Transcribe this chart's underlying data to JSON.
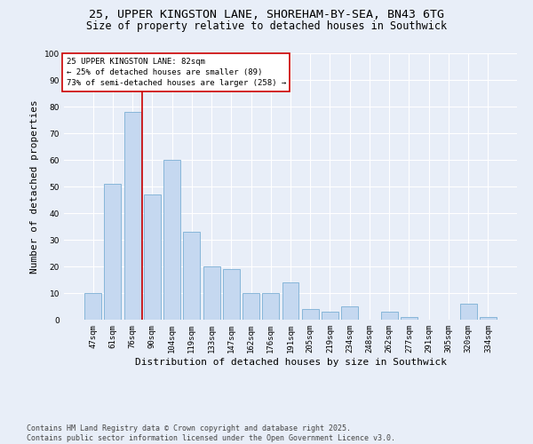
{
  "title_line1": "25, UPPER KINGSTON LANE, SHOREHAM-BY-SEA, BN43 6TG",
  "title_line2": "Size of property relative to detached houses in Southwick",
  "xlabel": "Distribution of detached houses by size in Southwick",
  "ylabel": "Number of detached properties",
  "categories": [
    "47sqm",
    "61sqm",
    "76sqm",
    "90sqm",
    "104sqm",
    "119sqm",
    "133sqm",
    "147sqm",
    "162sqm",
    "176sqm",
    "191sqm",
    "205sqm",
    "219sqm",
    "234sqm",
    "248sqm",
    "262sqm",
    "277sqm",
    "291sqm",
    "305sqm",
    "320sqm",
    "334sqm"
  ],
  "values": [
    10,
    51,
    78,
    47,
    60,
    33,
    20,
    19,
    10,
    10,
    14,
    4,
    3,
    5,
    0,
    3,
    1,
    0,
    0,
    6,
    1
  ],
  "bar_color": "#c5d8f0",
  "bar_edge_color": "#7bafd4",
  "background_color": "#e8eef8",
  "grid_color": "#ffffff",
  "annotation_line_color": "#cc0000",
  "annotation_text": "25 UPPER KINGSTON LANE: 82sqm\n← 25% of detached houses are smaller (89)\n73% of semi-detached houses are larger (258) →",
  "annotation_box_color": "#cc0000",
  "ylim": [
    0,
    100
  ],
  "yticks": [
    0,
    10,
    20,
    30,
    40,
    50,
    60,
    70,
    80,
    90,
    100
  ],
  "footnote": "Contains HM Land Registry data © Crown copyright and database right 2025.\nContains public sector information licensed under the Open Government Licence v3.0.",
  "title_fontsize": 9.5,
  "subtitle_fontsize": 8.5,
  "ylabel_fontsize": 8,
  "xlabel_fontsize": 8,
  "tick_fontsize": 6.5,
  "annotation_fontsize": 6.5,
  "footnote_fontsize": 6
}
